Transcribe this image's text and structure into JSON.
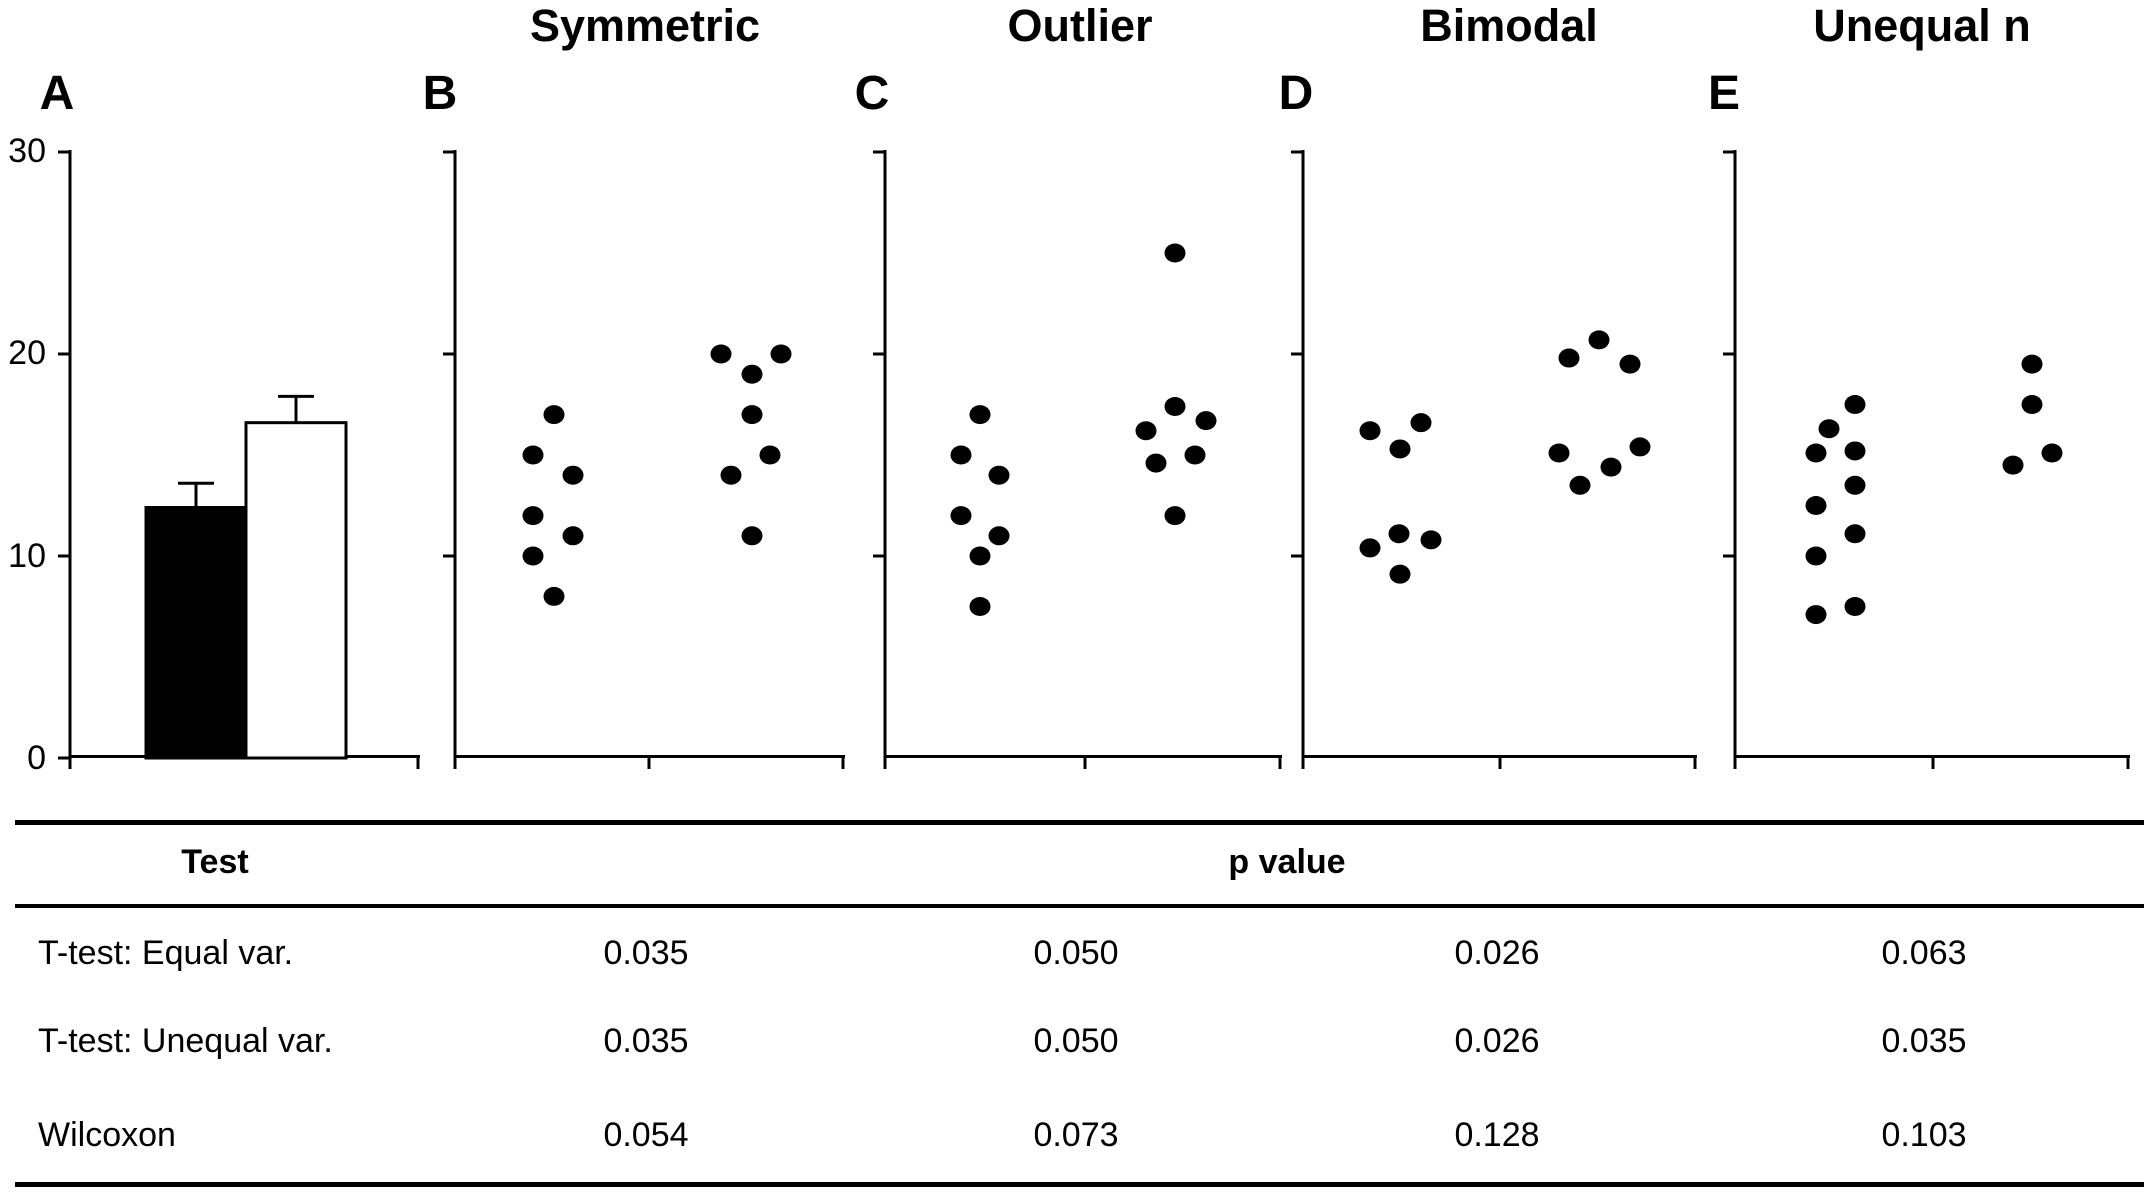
{
  "figure": {
    "panel_labels": [
      "A",
      "B",
      "C",
      "D",
      "E"
    ],
    "colors": {
      "ink": "#000000",
      "background": "#ffffff"
    }
  },
  "chart_data": [
    {
      "type": "bar",
      "panel": "A",
      "ylim": [
        0,
        30
      ],
      "ytick_labels": [
        "30",
        "20",
        "10",
        "0"
      ],
      "grid": false,
      "bars": [
        {
          "name": "group-1",
          "value": 12.4,
          "error_top": 13.6,
          "fill": "#000000"
        },
        {
          "name": "group-2",
          "value": 16.6,
          "error_top": 17.9,
          "fill": "#ffffff"
        }
      ]
    },
    {
      "type": "scatter",
      "panel": "B",
      "title": "Symmetric",
      "ylim": [
        0,
        30
      ],
      "groups": [
        {
          "name": "group-1",
          "values": [
            17,
            15,
            14,
            12,
            11,
            10,
            8
          ],
          "dx": [
            1,
            -20,
            20,
            -20,
            20,
            -20,
            1
          ]
        },
        {
          "name": "group-2",
          "values": [
            20,
            20,
            19,
            17,
            15,
            14,
            11
          ],
          "dx": [
            -30,
            30,
            1,
            1,
            19,
            -20,
            1
          ]
        }
      ]
    },
    {
      "type": "scatter",
      "panel": "C",
      "title": "Outlier",
      "ylim": [
        0,
        30
      ],
      "groups": [
        {
          "name": "group-1",
          "values": [
            17,
            15,
            14,
            12,
            11,
            10,
            7.5
          ],
          "dx": [
            -2,
            -21,
            17,
            -21,
            17,
            -2,
            -2
          ]
        },
        {
          "name": "group-2",
          "values": [
            25,
            17.4,
            16.7,
            16.2,
            15,
            14.6,
            12
          ],
          "dx": [
            0,
            0,
            31,
            -29,
            20,
            -19,
            0
          ]
        }
      ]
    },
    {
      "type": "scatter",
      "panel": "D",
      "title": "Bimodal",
      "ylim": [
        0,
        30
      ],
      "groups": [
        {
          "name": "group-1",
          "values": [
            16.6,
            16.2,
            15.3,
            11.1,
            10.8,
            10.4,
            9.1
          ],
          "dx": [
            21,
            -30,
            0,
            -1,
            31,
            -30,
            0
          ]
        },
        {
          "name": "group-2",
          "values": [
            20.7,
            19.8,
            19.5,
            15.4,
            15.1,
            14.4,
            13.5
          ],
          "dx": [
            -1,
            -31,
            30,
            40,
            -41,
            11,
            -20
          ]
        }
      ]
    },
    {
      "type": "scatter",
      "panel": "E",
      "title": "Unequal n",
      "ylim": [
        0,
        30
      ],
      "groups": [
        {
          "name": "group-1",
          "values": [
            17.5,
            16.3,
            15.2,
            15.1,
            13.5,
            12.5,
            11.1,
            10,
            7.5,
            7.1
          ],
          "dx": [
            20,
            -6,
            20,
            -19,
            20,
            -19,
            20,
            -19,
            20,
            -19
          ]
        },
        {
          "name": "group-2",
          "values": [
            19.5,
            17.5,
            15.1,
            14.5
          ],
          "dx": [
            0,
            0,
            20,
            -19
          ]
        }
      ]
    }
  ],
  "table": {
    "header_test": "Test",
    "header_pvalue": "p value",
    "rows": [
      {
        "label": "T-test: Equal var.",
        "values": [
          "0.035",
          "0.050",
          "0.026",
          "0.063"
        ]
      },
      {
        "label": "T-test: Unequal var.",
        "values": [
          "0.035",
          "0.050",
          "0.026",
          "0.035"
        ]
      },
      {
        "label": "Wilcoxon",
        "values": [
          "0.054",
          "0.073",
          "0.128",
          "0.103"
        ]
      }
    ]
  }
}
